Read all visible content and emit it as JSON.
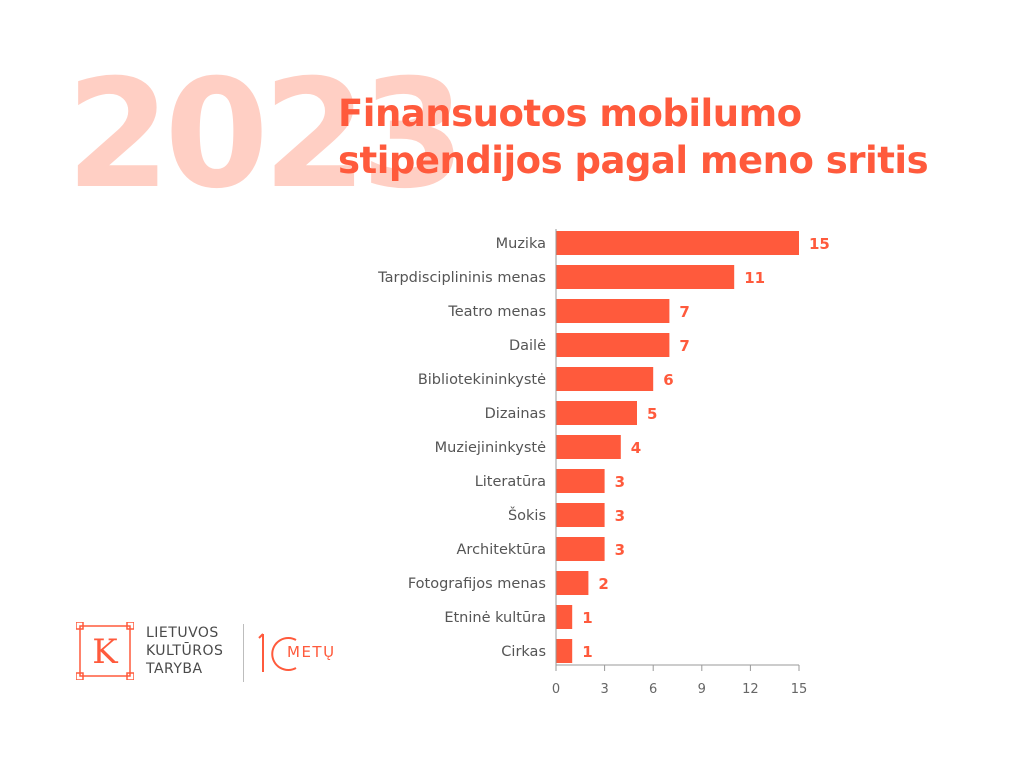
{
  "header": {
    "year": "2023",
    "title_line1": "Finansuotos mobilumo",
    "title_line2": "stipendijos pagal meno sritis"
  },
  "chart_data": {
    "type": "bar",
    "orientation": "horizontal",
    "categories": [
      "Muzika",
      "Tarpdisciplininis menas",
      "Teatro menas",
      "Dailė",
      "Bibliotekininkystė",
      "Dizainas",
      "Muziejininkystė",
      "Literatūra",
      "Šokis",
      "Architektūra",
      "Fotografijos menas",
      "Etninė kultūra",
      "Cirkas"
    ],
    "values": [
      15,
      11,
      7,
      7,
      6,
      5,
      4,
      3,
      3,
      3,
      2,
      1,
      1
    ],
    "xlim": [
      0,
      15
    ],
    "xticks": [
      0,
      3,
      6,
      9,
      12,
      15
    ],
    "bar_color": "#ff5a3c",
    "label_color": "#ff5a3c",
    "grid": false
  },
  "logo": {
    "line1": "LIETUVOS",
    "line2": "KULTŪROS",
    "line3": "TARYBA",
    "letter": "K",
    "anniversary": "METŲ",
    "anniversary_number": "10",
    "color": "#ff5a3c"
  }
}
